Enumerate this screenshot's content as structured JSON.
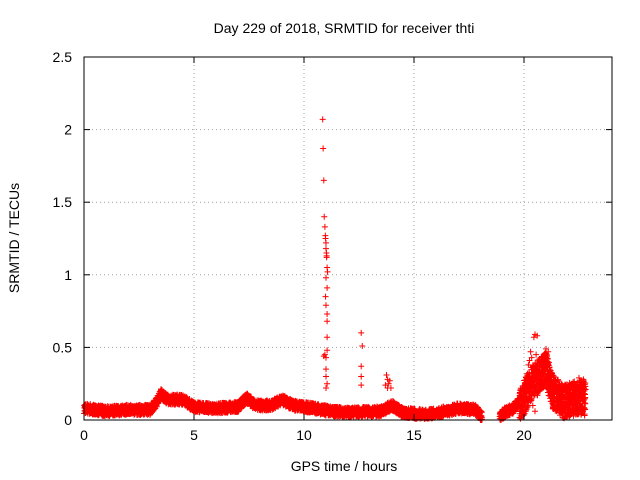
{
  "chart_data": {
    "type": "scatter",
    "title": "Day 229 of 2018, SRMTID for receiver thti",
    "xlabel": "GPS time / hours",
    "ylabel": "SRMTID / TECUs",
    "xlim": [
      0,
      24
    ],
    "ylim": [
      0,
      2.5
    ],
    "xticks": [
      0,
      5,
      10,
      15,
      20
    ],
    "xtick_labels": [
      "0",
      "5",
      "10",
      "15",
      "20"
    ],
    "yticks": [
      0,
      0.5,
      1,
      1.5,
      2,
      2.5
    ],
    "ytick_labels": [
      "0",
      "0.5",
      "1",
      "1.5",
      "2",
      "2.5"
    ],
    "grid": true,
    "marker": "+",
    "color": "#ff0000",
    "series": [
      {
        "name": "SRMTID",
        "baseline_profile": [
          [
            0.0,
            0.08
          ],
          [
            0.5,
            0.07
          ],
          [
            1.0,
            0.06
          ],
          [
            2.0,
            0.07
          ],
          [
            3.0,
            0.07
          ],
          [
            3.3,
            0.12
          ],
          [
            3.5,
            0.18
          ],
          [
            3.8,
            0.14
          ],
          [
            4.5,
            0.14
          ],
          [
            5.0,
            0.09
          ],
          [
            6.0,
            0.08
          ],
          [
            7.0,
            0.09
          ],
          [
            7.4,
            0.15
          ],
          [
            7.8,
            0.1
          ],
          [
            8.5,
            0.1
          ],
          [
            9.0,
            0.14
          ],
          [
            9.5,
            0.1
          ],
          [
            10.5,
            0.08
          ],
          [
            11.2,
            0.06
          ],
          [
            12.0,
            0.05
          ],
          [
            13.5,
            0.06
          ],
          [
            14.0,
            0.1
          ],
          [
            14.5,
            0.05
          ],
          [
            15.5,
            0.04
          ],
          [
            16.5,
            0.06
          ],
          [
            17.0,
            0.08
          ],
          [
            17.8,
            0.07
          ],
          [
            18.2,
            0.0
          ],
          [
            18.8,
            0.0
          ],
          [
            19.0,
            0.04
          ],
          [
            19.5,
            0.08
          ],
          [
            20.0,
            0.15
          ],
          [
            20.3,
            0.25
          ],
          [
            20.7,
            0.3
          ],
          [
            21.0,
            0.35
          ],
          [
            21.3,
            0.2
          ],
          [
            21.8,
            0.12
          ],
          [
            22.3,
            0.15
          ],
          [
            22.8,
            0.15
          ]
        ],
        "spikes": [
          [
            10.85,
            2.07
          ],
          [
            10.87,
            1.87
          ],
          [
            10.9,
            1.65
          ],
          [
            10.92,
            1.4
          ],
          [
            10.95,
            1.33
          ],
          [
            10.97,
            1.27
          ],
          [
            10.98,
            1.25
          ],
          [
            11.0,
            1.22
          ],
          [
            11.0,
            1.18
          ],
          [
            11.02,
            1.15
          ],
          [
            11.03,
            1.13
          ],
          [
            11.03,
            1.12
          ],
          [
            11.05,
            1.05
          ],
          [
            11.07,
            1.02
          ],
          [
            11.0,
            0.98
          ],
          [
            11.05,
            0.91
          ],
          [
            10.98,
            0.85
          ],
          [
            11.0,
            0.79
          ],
          [
            11.05,
            0.73
          ],
          [
            11.05,
            0.68
          ],
          [
            11.05,
            0.57
          ],
          [
            11.05,
            0.48
          ],
          [
            10.95,
            0.45
          ],
          [
            11.0,
            0.43
          ],
          [
            10.9,
            0.44
          ],
          [
            11.0,
            0.35
          ],
          [
            11.0,
            0.3
          ],
          [
            11.05,
            0.25
          ],
          [
            11.0,
            0.22
          ],
          [
            12.6,
            0.6
          ],
          [
            12.65,
            0.51
          ],
          [
            12.6,
            0.37
          ],
          [
            12.6,
            0.3
          ],
          [
            12.6,
            0.24
          ],
          [
            13.75,
            0.31
          ],
          [
            13.8,
            0.28
          ],
          [
            13.9,
            0.27
          ],
          [
            13.85,
            0.25
          ],
          [
            13.7,
            0.24
          ],
          [
            13.95,
            0.22
          ],
          [
            13.8,
            0.22
          ],
          [
            20.5,
            0.59
          ],
          [
            20.6,
            0.58
          ],
          [
            20.45,
            0.57
          ],
          [
            20.3,
            0.47
          ],
          [
            20.35,
            0.43
          ],
          [
            20.25,
            0.41
          ],
          [
            20.2,
            0.38
          ],
          [
            20.55,
            0.45
          ],
          [
            20.7,
            0.42
          ],
          [
            20.85,
            0.38
          ],
          [
            21.0,
            0.49
          ],
          [
            21.1,
            0.47
          ],
          [
            21.05,
            0.44
          ],
          [
            20.9,
            0.32
          ],
          [
            21.15,
            0.36
          ],
          [
            20.4,
            0.1
          ],
          [
            20.5,
            0.06
          ],
          [
            22.5,
            0.29
          ],
          [
            22.6,
            0.27
          ],
          [
            22.4,
            0.25
          ],
          [
            21.6,
            0.24
          ],
          [
            21.5,
            0.19
          ],
          [
            22.1,
            0.22
          ],
          [
            22.7,
            0.28
          ],
          [
            22.8,
            0.21
          ]
        ]
      }
    ]
  }
}
